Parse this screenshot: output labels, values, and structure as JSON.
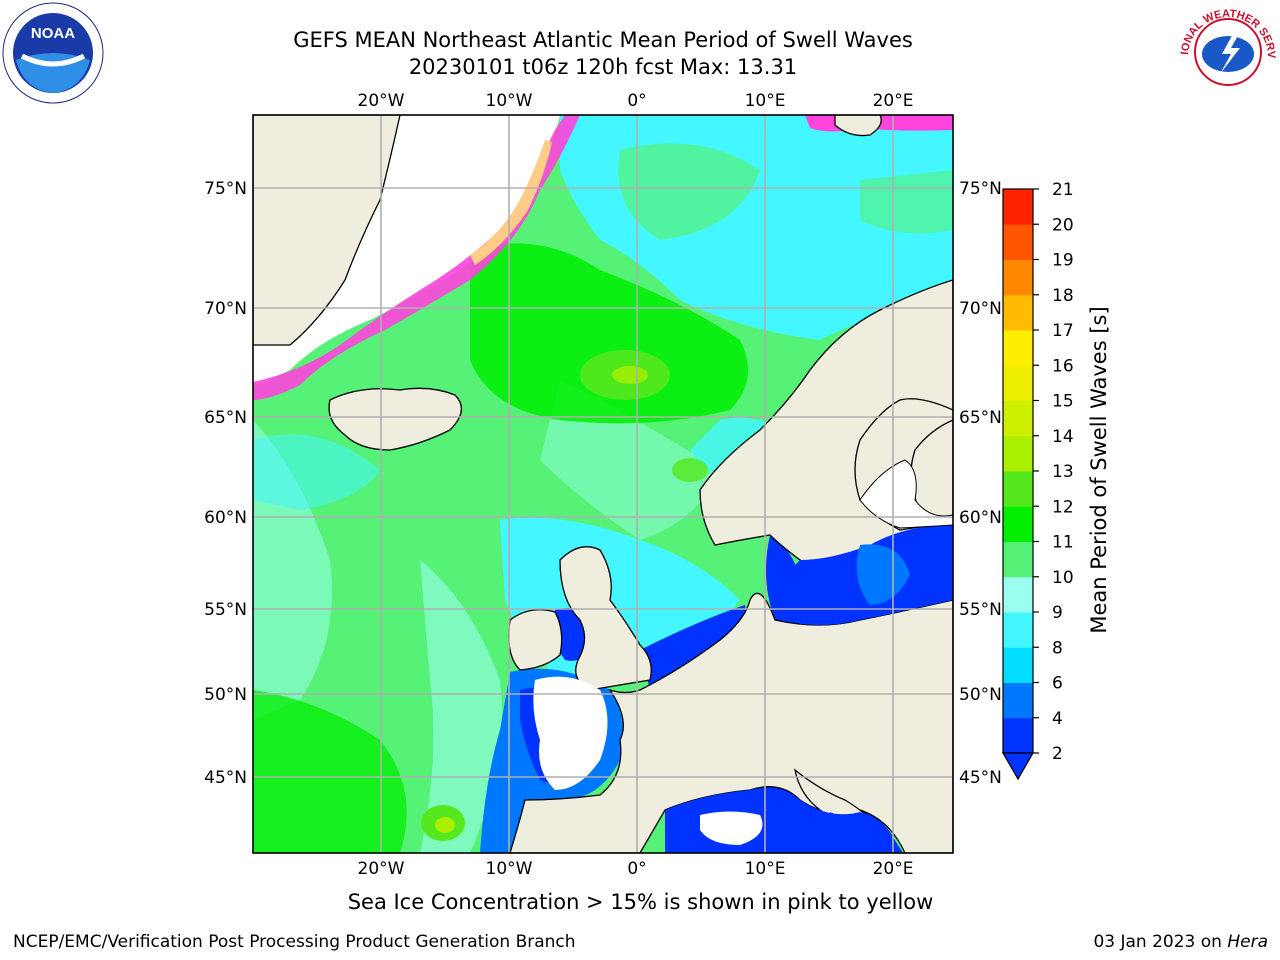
{
  "title_line1": "GEFS MEAN Northeast Atlantic Mean Period of Swell Waves",
  "title_line2": "20230101 t06z 120h fcst   Max: 13.31",
  "lon_ticks": [
    "20°W",
    "10°W",
    "0°",
    "10°E",
    "20°E"
  ],
  "lat_ticks": [
    "75°N",
    "70°N",
    "65°N",
    "60°N",
    "55°N",
    "50°N",
    "45°N"
  ],
  "colorbar": {
    "label": "Mean Period of Swell Waves [s]",
    "ticks": [
      "2",
      "4",
      "6",
      "8",
      "9",
      "10",
      "11",
      "12",
      "13",
      "14",
      "15",
      "16",
      "17",
      "18",
      "19",
      "20",
      "21"
    ],
    "colors": [
      "#0033ff",
      "#0077ff",
      "#00ddff",
      "#44f6ff",
      "#9bffef",
      "#55f277",
      "#00ee00",
      "#55e81e",
      "#aaee00",
      "#ccf000",
      "#eeee00",
      "#ffee00",
      "#ffbb00",
      "#ff8800",
      "#ff5500",
      "#ff2200",
      "#ff0000"
    ]
  },
  "colors": {
    "land": "#efedde",
    "sea_ice": "#ffffff",
    "ice_edge_pink": "#ff44dd",
    "ice_edge_yellow": "#ffcc88",
    "grid": "#b0b0b0"
  },
  "footnote": "Sea Ice Concentration > 15% is shown in pink to yellow",
  "credit": "NCEP/EMC/Verification Post Processing Product Generation Branch",
  "date": "03 Jan 2023 on",
  "date_machine": "Hera",
  "logos": {
    "left": "NOAA",
    "right": "NATIONAL WEATHER SERVICE"
  }
}
